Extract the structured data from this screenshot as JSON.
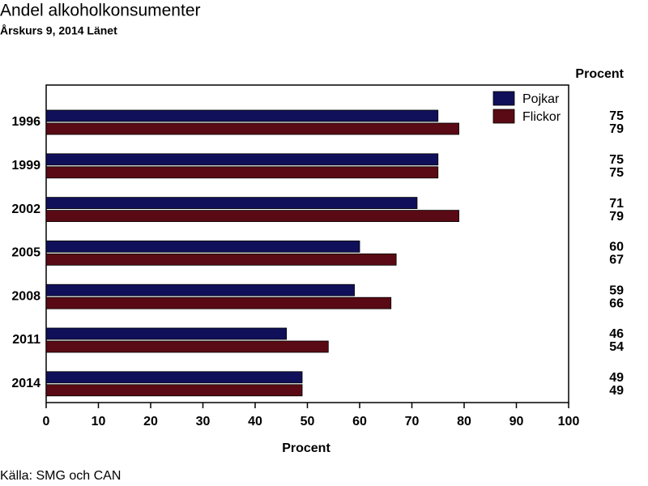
{
  "chart_data": {
    "type": "bar",
    "orientation": "horizontal",
    "title": "Andel alkoholkonsumenter",
    "subtitle": "Årskurs 9, 2014 Länet",
    "value_label_header": "Procent",
    "x_label": "Procent",
    "source": "Källa: SMG och CAN",
    "categories": [
      "1996",
      "1999",
      "2002",
      "2005",
      "2008",
      "2011",
      "2014"
    ],
    "series": [
      {
        "name": "Pojkar",
        "color": "#10105a",
        "values": [
          75,
          75,
          71,
          60,
          59,
          46,
          49
        ]
      },
      {
        "name": "Flickor",
        "color": "#5a0a14",
        "values": [
          79,
          75,
          79,
          67,
          66,
          54,
          49
        ]
      }
    ],
    "xlim": [
      0,
      100
    ],
    "xticks": [
      0,
      10,
      20,
      30,
      40,
      50,
      60,
      70,
      80,
      90,
      100
    ],
    "legend": "top-right",
    "grid": false
  }
}
